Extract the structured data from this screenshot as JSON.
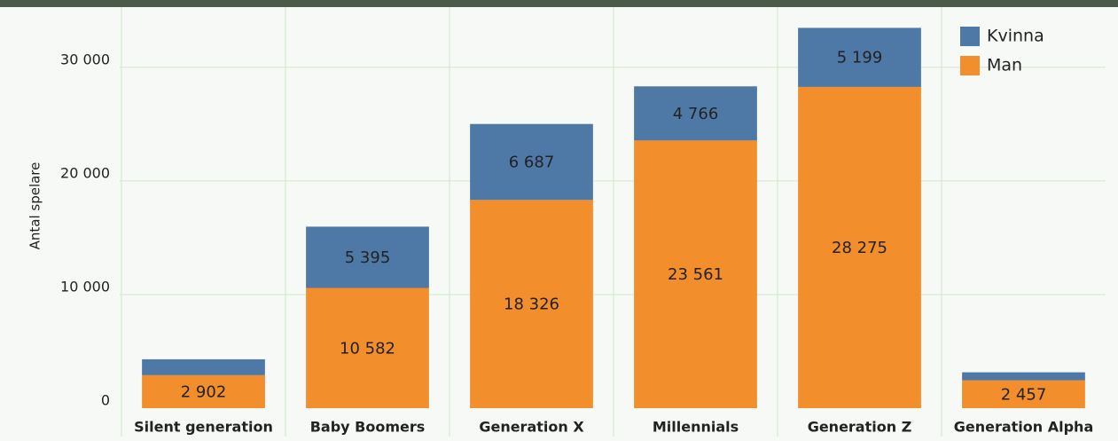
{
  "chart_data": {
    "type": "stacked_bar",
    "y_label": "Antal spelare",
    "categories": [
      "Silent generation",
      "Baby Boomers",
      "Generation X",
      "Millennials",
      "Generation Z",
      "Generation Alpha"
    ],
    "series": [
      {
        "name": "Man",
        "color": "#f28e2b",
        "values": [
          2902,
          10582,
          18326,
          23561,
          28275,
          2457
        ],
        "value_labels": [
          "2 902",
          "10 582",
          "18 326",
          "23 561",
          "28 275",
          "2 457"
        ]
      },
      {
        "name": "Kvinna",
        "color": "#4e79a7",
        "values": [
          1400,
          5395,
          6687,
          4766,
          5199,
          700
        ],
        "value_labels": [
          null,
          "5 395",
          "6 687",
          "4 766",
          "5 199",
          null
        ]
      }
    ],
    "ylim": [
      0,
      35300
    ],
    "yticks": [
      0,
      {
        "value": 10000,
        "label": "10 000"
      },
      {
        "value": 20000,
        "label": "20 000"
      },
      {
        "value": 30000,
        "label": "30 000"
      }
    ],
    "grid": true,
    "legend": "top-right"
  }
}
